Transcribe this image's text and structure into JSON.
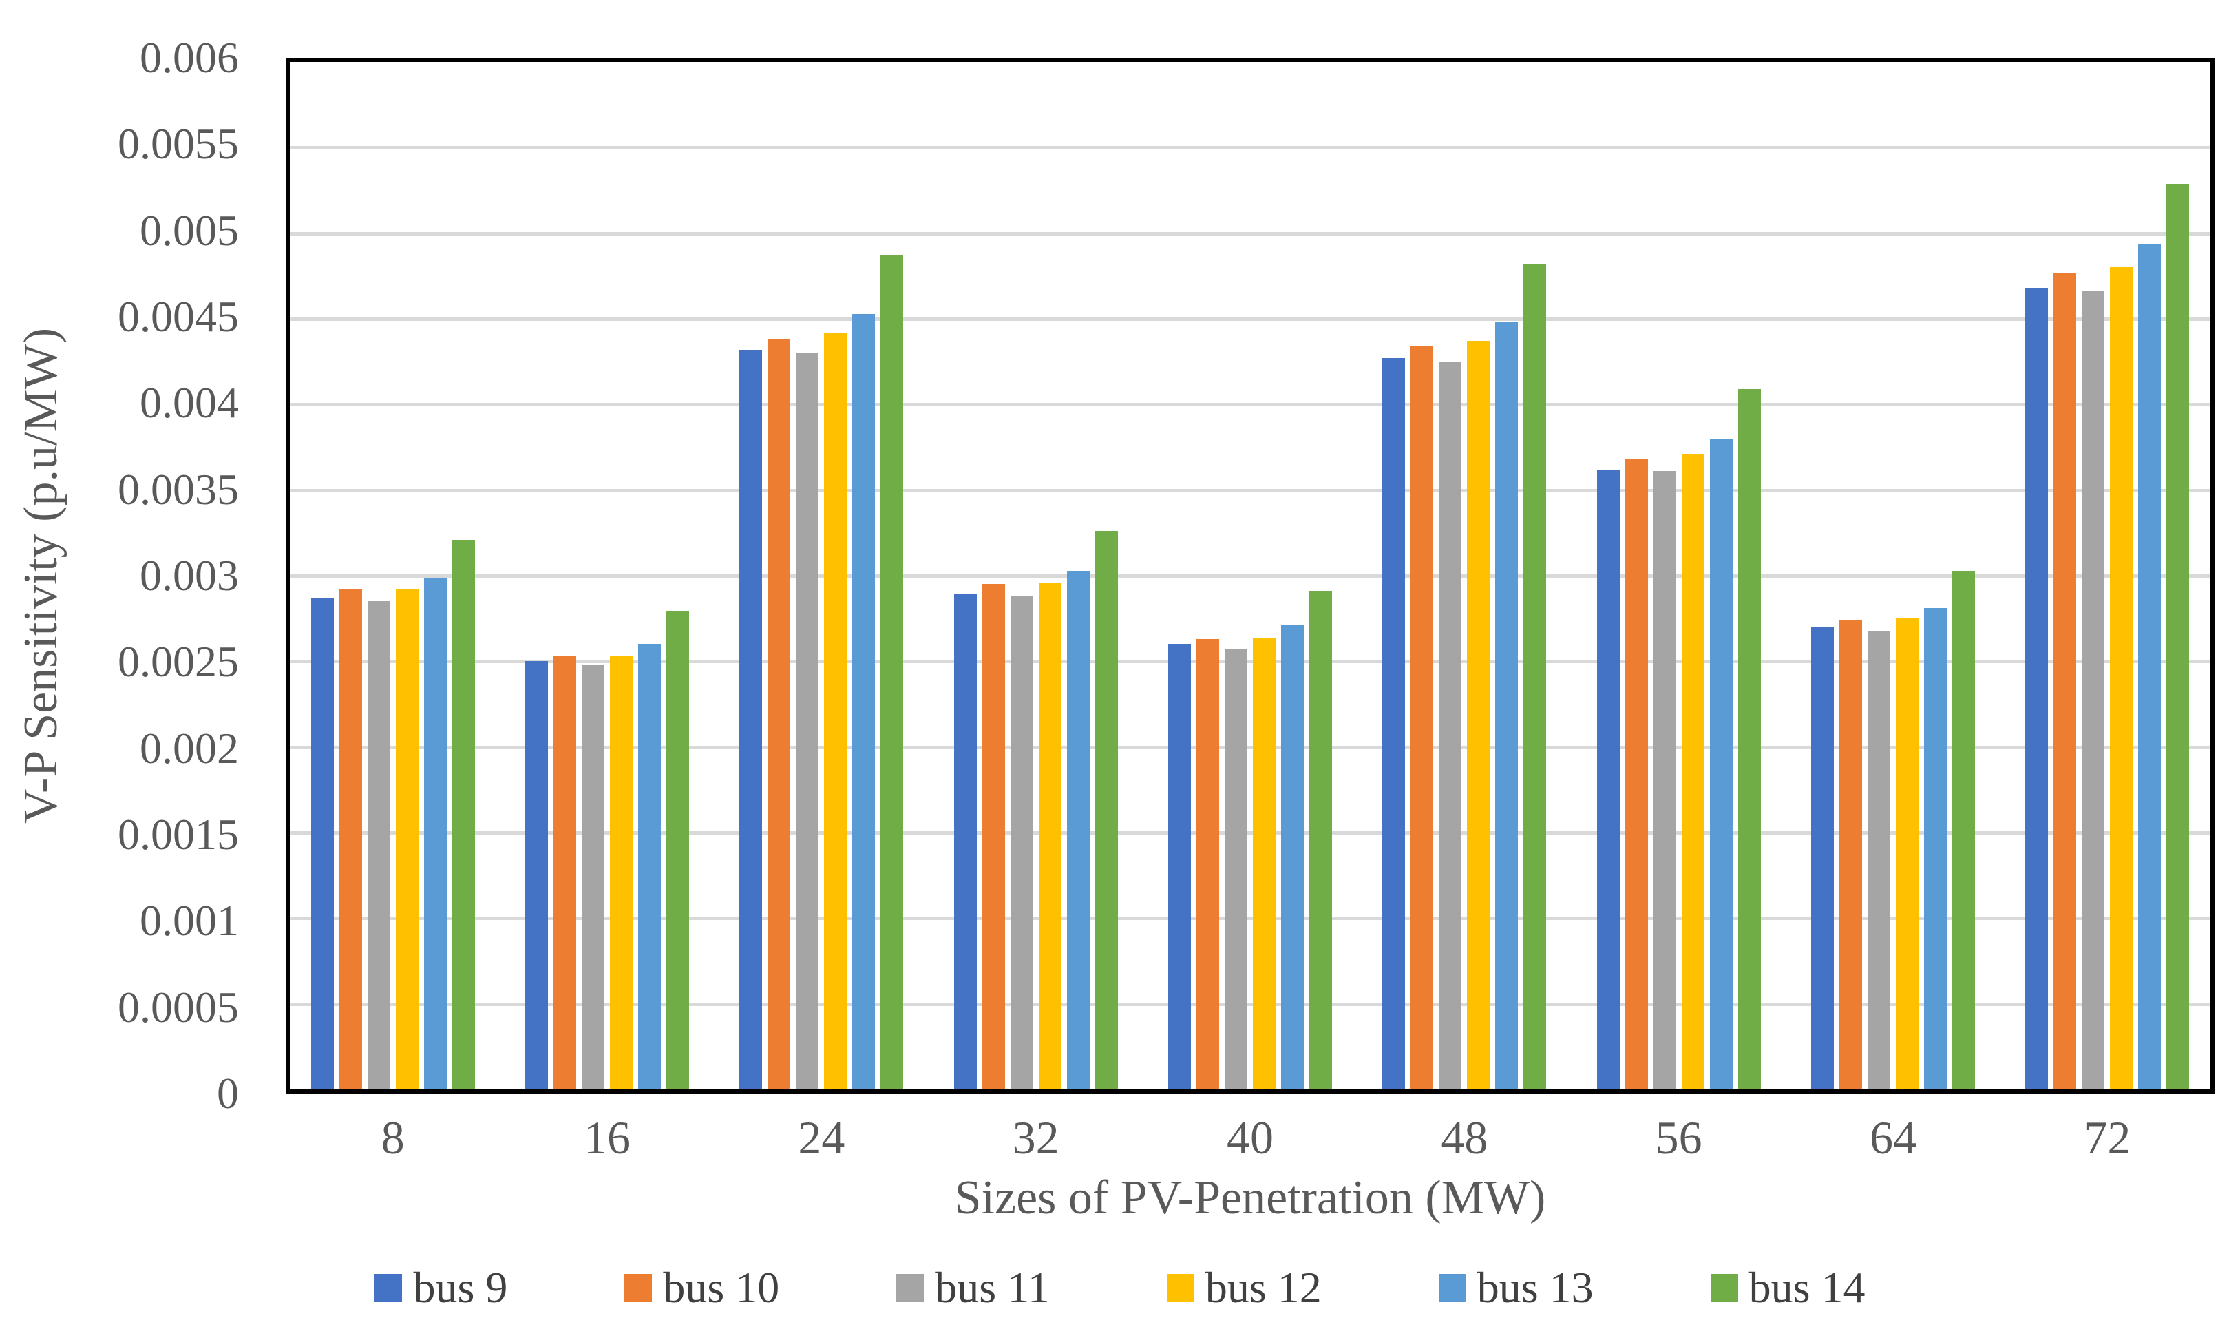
{
  "chart_data": {
    "type": "bar",
    "title": "",
    "xlabel": "Sizes of PV-Penetration (MW)",
    "ylabel": "V-P Sensitivity (p.u/MW)",
    "categories": [
      "8",
      "16",
      "24",
      "32",
      "40",
      "48",
      "56",
      "64",
      "72"
    ],
    "series": [
      {
        "name": "bus 9",
        "color": "#4472C4",
        "values": [
          0.00287,
          0.0025,
          0.00432,
          0.00289,
          0.0026,
          0.00427,
          0.00362,
          0.0027,
          0.00468
        ]
      },
      {
        "name": "bus 10",
        "color": "#ED7D31",
        "values": [
          0.00292,
          0.00253,
          0.00438,
          0.00295,
          0.00263,
          0.00434,
          0.00368,
          0.00274,
          0.00477
        ]
      },
      {
        "name": "bus 11",
        "color": "#A5A5A5",
        "values": [
          0.00285,
          0.00248,
          0.0043,
          0.00288,
          0.00257,
          0.00425,
          0.00361,
          0.00268,
          0.00466
        ]
      },
      {
        "name": "bus 12",
        "color": "#FFC000",
        "values": [
          0.00292,
          0.00253,
          0.00442,
          0.00296,
          0.00264,
          0.00437,
          0.00371,
          0.00275,
          0.0048
        ]
      },
      {
        "name": "bus 13",
        "color": "#5B9BD5",
        "values": [
          0.00299,
          0.0026,
          0.00453,
          0.00303,
          0.00271,
          0.00448,
          0.0038,
          0.00281,
          0.00494
        ]
      },
      {
        "name": "bus 14",
        "color": "#70AD47",
        "values": [
          0.00321,
          0.00279,
          0.00487,
          0.00326,
          0.00291,
          0.00482,
          0.00409,
          0.00303,
          0.00529
        ]
      }
    ],
    "ylim": [
      0,
      0.006
    ],
    "ytick_step": 0.0005,
    "ytick_labels": [
      "0",
      "0.0005",
      "0.001",
      "0.0015",
      "0.002",
      "0.0025",
      "0.003",
      "0.0035",
      "0.004",
      "0.0045",
      "0.005",
      "0.0055",
      "0.006"
    ],
    "grid": true,
    "legend_position": "bottom",
    "colors": {
      "axis_text": "#595959",
      "gridline": "#D9D9D9",
      "plot_border": "#000000",
      "background": "#FFFFFF"
    }
  }
}
